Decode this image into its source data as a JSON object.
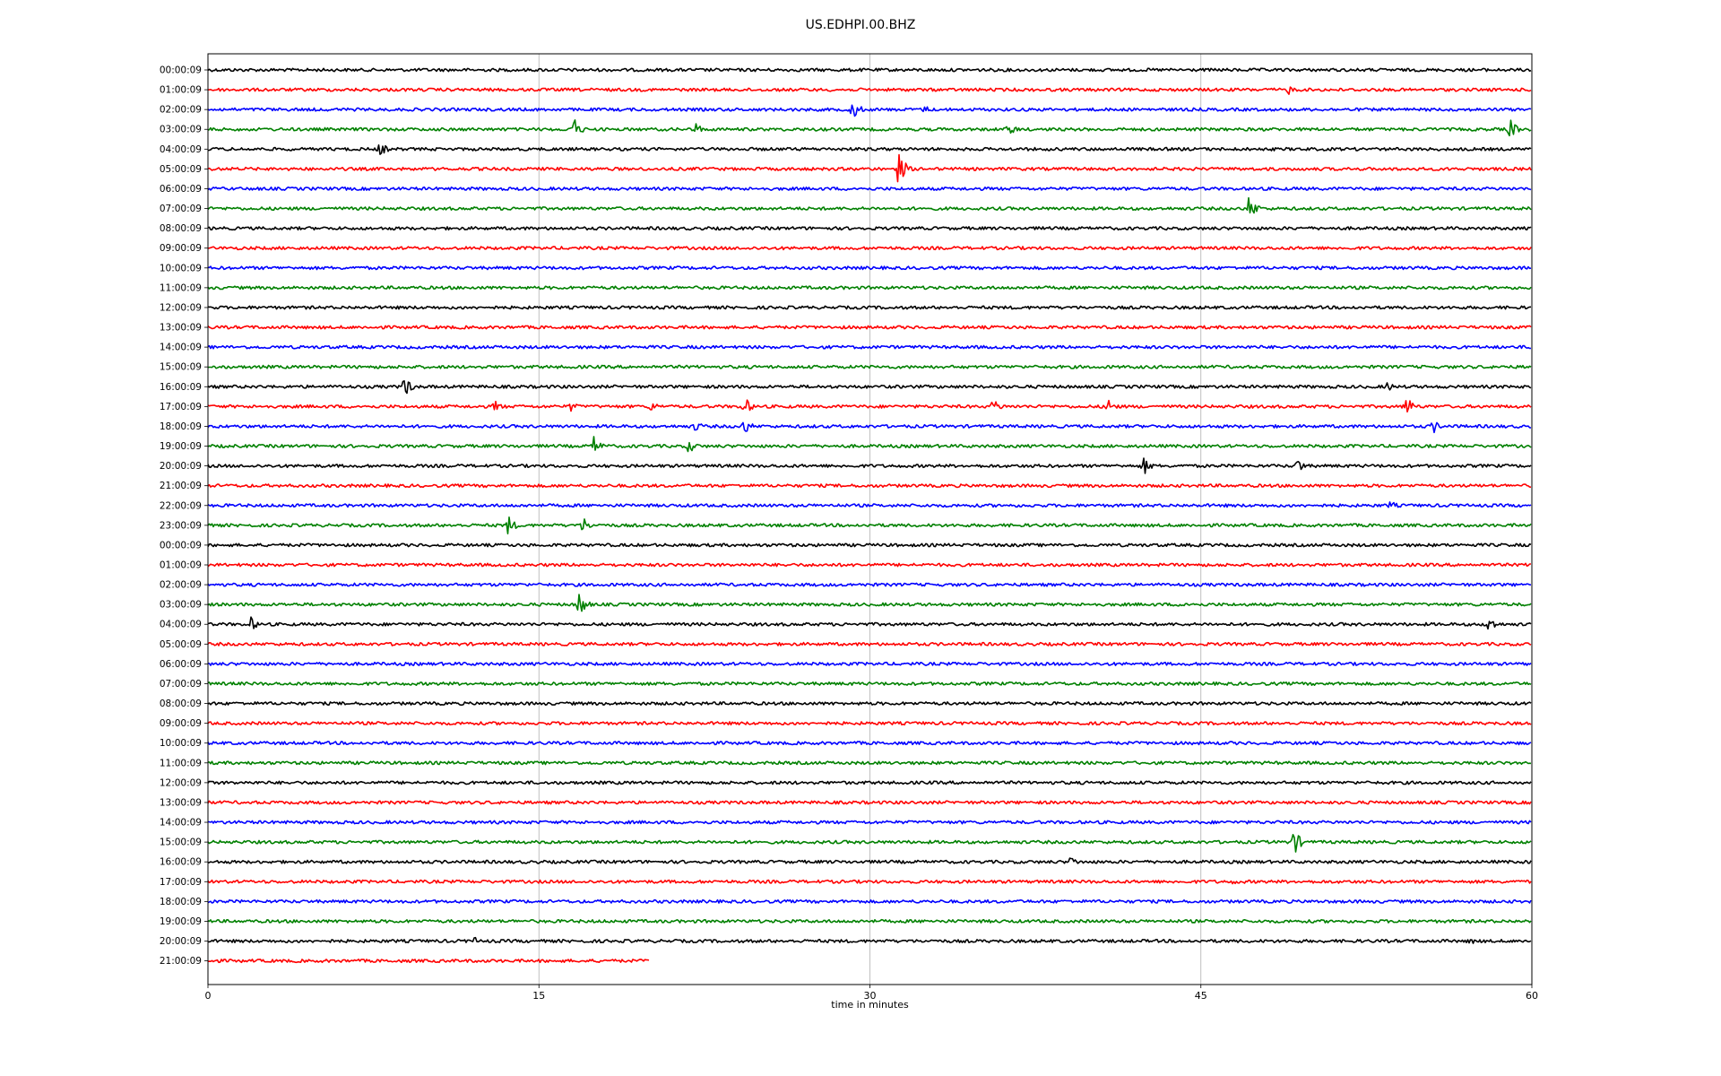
{
  "chart_data": {
    "type": "line",
    "title": "US.EDHPI.00.BHZ",
    "xlabel": "time in minutes",
    "ylabel": "",
    "xlim": [
      0,
      60
    ],
    "xticks": [
      "0",
      "15",
      "30",
      "45",
      "60"
    ],
    "grid": "vertical lines at 15-minute ticks",
    "trace_colors": [
      "#000000",
      "#ff0000",
      "#0000ff",
      "#008000"
    ],
    "row_labels": [
      "00:00:09",
      "01:00:09",
      "02:00:09",
      "03:00:09",
      "04:00:09",
      "05:00:09",
      "06:00:09",
      "07:00:09",
      "08:00:09",
      "09:00:09",
      "10:00:09",
      "11:00:09",
      "12:00:09",
      "13:00:09",
      "14:00:09",
      "15:00:09",
      "16:00:09",
      "17:00:09",
      "18:00:09",
      "19:00:09",
      "20:00:09",
      "21:00:09",
      "22:00:09",
      "23:00:09",
      "00:00:09",
      "01:00:09",
      "02:00:09",
      "03:00:09",
      "04:00:09",
      "05:00:09",
      "06:00:09",
      "07:00:09",
      "08:00:09",
      "09:00:09",
      "10:00:09",
      "11:00:09",
      "12:00:09",
      "13:00:09",
      "14:00:09",
      "15:00:09",
      "16:00:09",
      "17:00:09",
      "18:00:09",
      "19:00:09",
      "20:00:09",
      "21:00:09"
    ],
    "last_row_end_minute": 20,
    "events": [
      {
        "row": 1,
        "minute": 49.0,
        "amp": 6
      },
      {
        "row": 2,
        "minute": 29.2,
        "amp": 14
      },
      {
        "row": 2,
        "minute": 32.5,
        "amp": 5
      },
      {
        "row": 3,
        "minute": 16.5,
        "amp": 18
      },
      {
        "row": 3,
        "minute": 22.1,
        "amp": 8
      },
      {
        "row": 3,
        "minute": 36.3,
        "amp": 9
      },
      {
        "row": 3,
        "minute": 59.0,
        "amp": 12
      },
      {
        "row": 4,
        "minute": 7.8,
        "amp": 9
      },
      {
        "row": 5,
        "minute": 31.3,
        "amp": 20
      },
      {
        "row": 7,
        "minute": 47.2,
        "amp": 16
      },
      {
        "row": 16,
        "minute": 8.9,
        "amp": 13
      },
      {
        "row": 16,
        "minute": 53.4,
        "amp": 7
      },
      {
        "row": 17,
        "minute": 13.0,
        "amp": 8
      },
      {
        "row": 17,
        "minute": 16.4,
        "amp": 7
      },
      {
        "row": 17,
        "minute": 20.1,
        "amp": 7
      },
      {
        "row": 17,
        "minute": 24.3,
        "amp": 12
      },
      {
        "row": 17,
        "minute": 35.6,
        "amp": 10
      },
      {
        "row": 17,
        "minute": 40.8,
        "amp": 10
      },
      {
        "row": 17,
        "minute": 54.3,
        "amp": 14
      },
      {
        "row": 18,
        "minute": 22.1,
        "amp": 7
      },
      {
        "row": 18,
        "minute": 24.3,
        "amp": 10
      },
      {
        "row": 18,
        "minute": 55.5,
        "amp": 9
      },
      {
        "row": 19,
        "minute": 17.5,
        "amp": 12
      },
      {
        "row": 19,
        "minute": 21.8,
        "amp": 9
      },
      {
        "row": 20,
        "minute": 42.4,
        "amp": 11
      },
      {
        "row": 20,
        "minute": 49.4,
        "amp": 10
      },
      {
        "row": 22,
        "minute": 53.6,
        "amp": 6
      },
      {
        "row": 23,
        "minute": 13.6,
        "amp": 12
      },
      {
        "row": 23,
        "minute": 17.0,
        "amp": 10
      },
      {
        "row": 27,
        "minute": 16.8,
        "amp": 16
      },
      {
        "row": 27,
        "minute": 44.2,
        "amp": 5
      },
      {
        "row": 28,
        "minute": 1.9,
        "amp": 10
      },
      {
        "row": 28,
        "minute": 58.0,
        "amp": 12
      },
      {
        "row": 39,
        "minute": 49.2,
        "amp": 16
      },
      {
        "row": 40,
        "minute": 39.1,
        "amp": 7
      },
      {
        "row": 41,
        "minute": 46.5,
        "amp": 4
      },
      {
        "row": 44,
        "minute": 12.0,
        "amp": 6
      },
      {
        "row": 44,
        "minute": 57.2,
        "amp": 5
      }
    ]
  }
}
